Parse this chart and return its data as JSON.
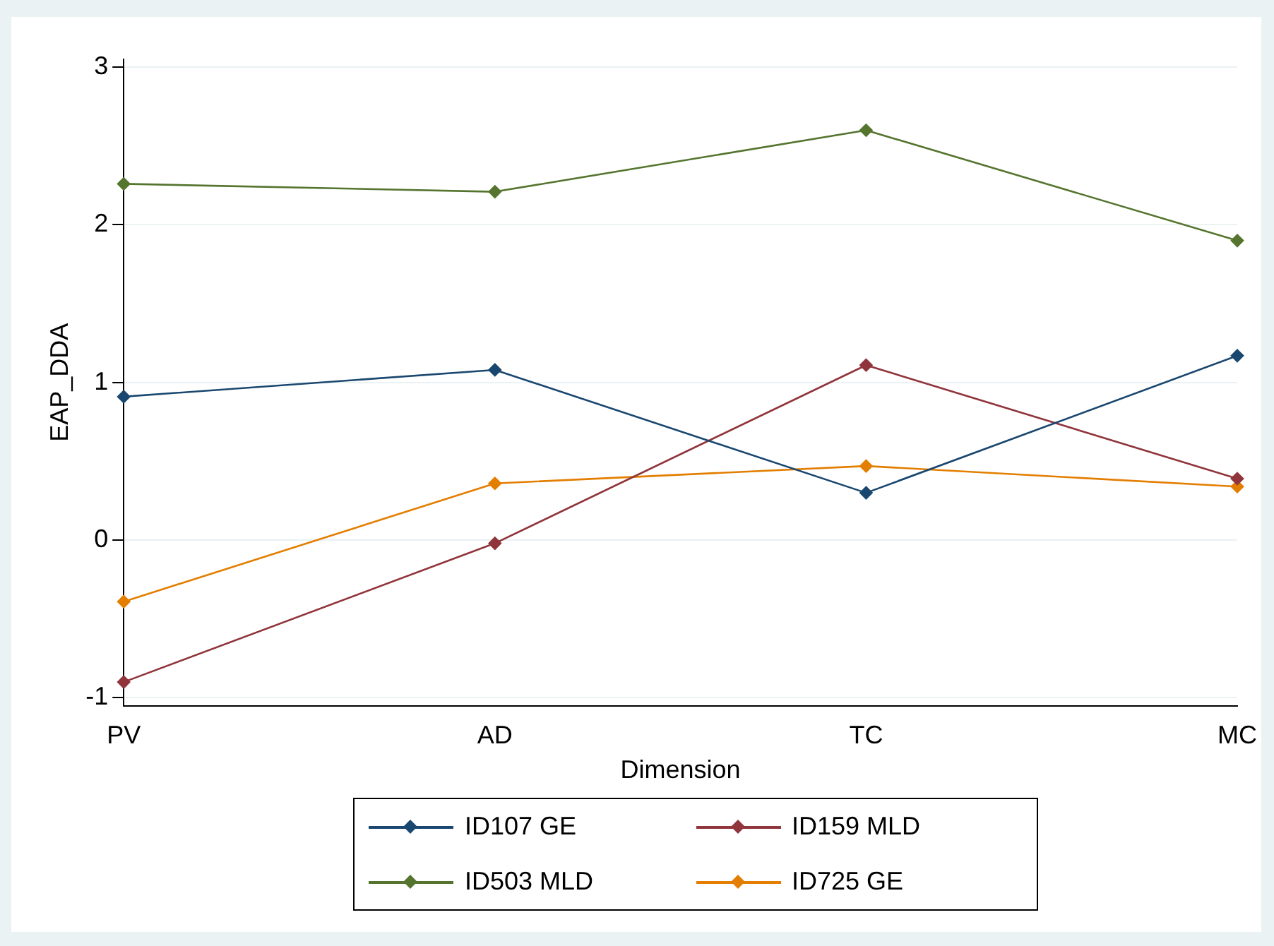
{
  "chart_data": {
    "type": "line",
    "xlabel": "Dimension",
    "ylabel": "EAP_DDA",
    "categories": [
      "PV",
      "AD",
      "TC",
      "MC"
    ],
    "series": [
      {
        "name": "ID107 GE",
        "color": "#1a476f",
        "values": [
          0.91,
          1.08,
          0.3,
          1.17
        ]
      },
      {
        "name": "ID159 MLD",
        "color": "#90353b",
        "values": [
          -0.9,
          -0.02,
          1.11,
          0.39
        ]
      },
      {
        "name": "ID503 MLD",
        "color": "#55752f",
        "values": [
          2.26,
          2.21,
          2.6,
          1.9
        ]
      },
      {
        "name": "ID725 GE",
        "color": "#e37e00",
        "values": [
          -0.39,
          0.36,
          0.47,
          0.34
        ]
      }
    ],
    "ylim": [
      -1.05,
      3.05
    ],
    "yticks": [
      -1,
      0,
      1,
      2,
      3
    ],
    "grid": "y",
    "legend": "bottom",
    "marker": "diamond",
    "line_style": "solid"
  }
}
